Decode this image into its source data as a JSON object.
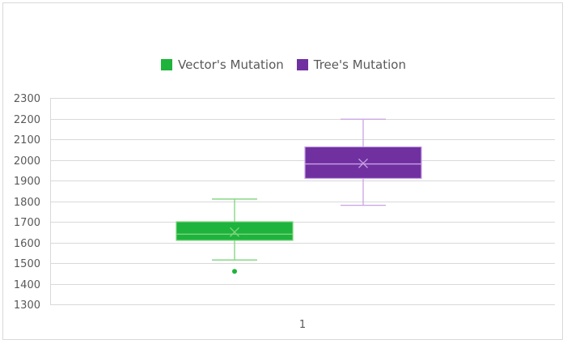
{
  "chart_data": {
    "type": "box",
    "categories": [
      "1"
    ],
    "series": [
      {
        "name": "Vector's Mutation",
        "color": "#1db33c",
        "whisker_color": "#7dd47d",
        "min": 1515,
        "q1": 1610,
        "median": 1640,
        "mean": 1650,
        "q3": 1700,
        "max": 1810,
        "outliers": [
          1460
        ]
      },
      {
        "name": "Tree's Mutation",
        "color": "#7030a0",
        "whisker_color": "#c9a3e6",
        "min": 1780,
        "q1": 1910,
        "median": 1980,
        "mean": 1983,
        "q3": 2063,
        "max": 2197,
        "outliers": []
      }
    ],
    "ylim": [
      1300,
      2300
    ],
    "yticks": [
      "1300",
      "1400",
      "1500",
      "1600",
      "1700",
      "1800",
      "1900",
      "2000",
      "2100",
      "2200",
      "2300"
    ],
    "grid": true,
    "legend_position": "top"
  }
}
